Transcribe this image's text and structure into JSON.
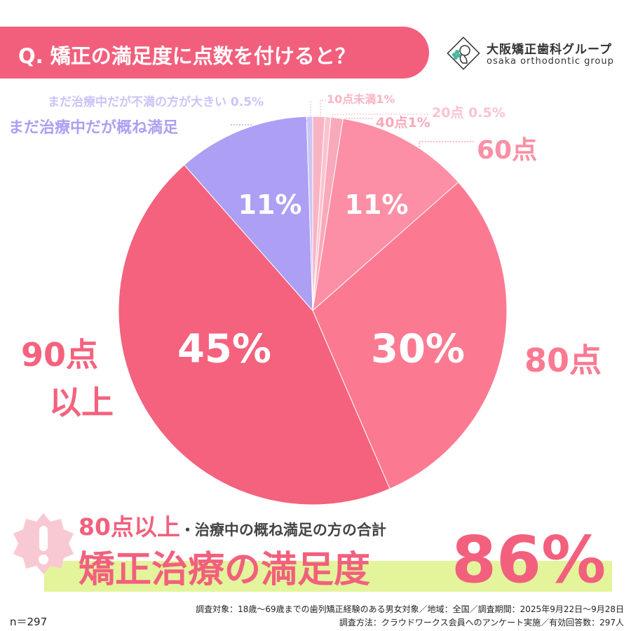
{
  "header": {
    "question": "Q.  矯正の満足度に点数を付けると？"
  },
  "logo": {
    "name": "大阪矯正歯科グループ",
    "sub": "osaka orthodontic group"
  },
  "chart_data": {
    "type": "pie",
    "slices": [
      {
        "label": "10点未満",
        "value": 1,
        "color": "#f9b4c3"
      },
      {
        "label": "20点",
        "value": 0.5,
        "color": "#fbc3cf"
      },
      {
        "label": "40点",
        "value": 1,
        "color": "#f8a9ba"
      },
      {
        "label": "60点",
        "value": 11,
        "color": "#fc8fa5"
      },
      {
        "label": "80点",
        "value": 30,
        "color": "#fb7a92"
      },
      {
        "label": "90点以上",
        "value": 45,
        "color": "#f4627d"
      },
      {
        "label": "まだ治療中だが概ね満足",
        "value": 11,
        "color": "#ac9ff4"
      },
      {
        "label": "まだ治療中だが不満の方が大きい",
        "value": 0.5,
        "color": "#cbc4f7"
      }
    ],
    "slice_labels": [
      "11%",
      "11%",
      "30%",
      "45%"
    ],
    "labels": {
      "fuman": "まだ治療中だが不満の方が大きい 0.5%",
      "gaine": "まだ治療中だが概ね満足",
      "u10": "10点未満1%",
      "p20": "20点 0.5%",
      "p40": "40点1%",
      "p60": "60点",
      "p80": "80点",
      "p90a": "90点",
      "p90b": "以上"
    }
  },
  "summary": {
    "sub_main": "80点以上",
    "sub_rest": "・治療中の概ね満足の方の合計",
    "title": "矯正治療の満足度",
    "value": "86%"
  },
  "footer": {
    "line1": "調査対象：18歳～69歳までの歯列矯正経験のある男女対象／地域：全国／調査期間：2025年9月22日～9月28日",
    "line2": "調査方法：クラウドワークス会員へのアンケート実施／有効回答数：297人",
    "n": "n＝297"
  },
  "colors": {
    "accent": "#f2607d",
    "highlight": "#e3f49b",
    "purple": "#ac9ff4"
  }
}
